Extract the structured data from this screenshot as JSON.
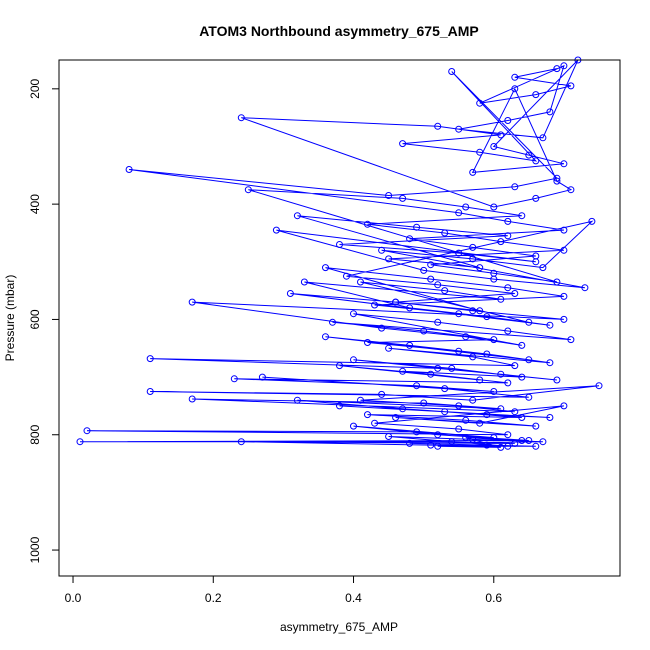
{
  "chart_data": {
    "type": "line",
    "title": "ATOM3 Northbound asymmetry_675_AMP",
    "xlabel": "asymmetry_675_AMP",
    "ylabel": "Pressure (mbar)",
    "xlim": [
      -0.02,
      0.78
    ],
    "ylim": [
      1045,
      150
    ],
    "y_reversed": true,
    "grid": false,
    "x_ticks": [
      0.0,
      0.2,
      0.4,
      0.6
    ],
    "x_tick_labels": [
      "0.0",
      "0.2",
      "0.4",
      "0.6"
    ],
    "y_ticks": [
      200,
      400,
      600,
      800,
      1000
    ],
    "y_tick_labels": [
      "200",
      "400",
      "600",
      "800",
      "1000"
    ],
    "series": [
      {
        "color": "#0000ff",
        "marker": "open-circle",
        "x": [
          0.69,
          0.63,
          0.71,
          0.66,
          0.58,
          0.7,
          0.68,
          0.62,
          0.55,
          0.67,
          0.72,
          0.6,
          0.65,
          0.7,
          0.57,
          0.63,
          0.69,
          0.71,
          0.66,
          0.6,
          0.24,
          0.52,
          0.61,
          0.47,
          0.58,
          0.66,
          0.54,
          0.69,
          0.63,
          0.45,
          0.08,
          0.55,
          0.62,
          0.7,
          0.48,
          0.57,
          0.66,
          0.51,
          0.6,
          0.69,
          0.25,
          0.47,
          0.56,
          0.64,
          0.42,
          0.53,
          0.61,
          0.7,
          0.45,
          0.58,
          0.32,
          0.49,
          0.62,
          0.38,
          0.55,
          0.66,
          0.29,
          0.5,
          0.6,
          0.73,
          0.44,
          0.57,
          0.67,
          0.74,
          0.39,
          0.52,
          0.63,
          0.46,
          0.58,
          0.36,
          0.51,
          0.62,
          0.7,
          0.43,
          0.55,
          0.65,
          0.41,
          0.53,
          0.61,
          0.33,
          0.48,
          0.59,
          0.68,
          0.31,
          0.46,
          0.57,
          0.7,
          0.17,
          0.44,
          0.56,
          0.64,
          0.4,
          0.52,
          0.62,
          0.71,
          0.37,
          0.5,
          0.6,
          0.42,
          0.55,
          0.65,
          0.36,
          0.48,
          0.59,
          0.68,
          0.45,
          0.57,
          0.63,
          0.11,
          0.52,
          0.61,
          0.69,
          0.4,
          0.54,
          0.64,
          0.47,
          0.58,
          0.38,
          0.51,
          0.62,
          0.23,
          0.49,
          0.6,
          0.27,
          0.53,
          0.65,
          0.11,
          0.44,
          0.57,
          0.75,
          0.41,
          0.55,
          0.63,
          0.17,
          0.5,
          0.61,
          0.32,
          0.47,
          0.59,
          0.68,
          0.38,
          0.53,
          0.64,
          0.42,
          0.56,
          0.66,
          0.46,
          0.58,
          0.7,
          0.43,
          0.55,
          0.62,
          0.02,
          0.49,
          0.6,
          0.4,
          0.52,
          0.65,
          0.01,
          0.54,
          0.63,
          0.24,
          0.51,
          0.62,
          0.45,
          0.57,
          0.67,
          0.48,
          0.59,
          0.66,
          0.52,
          0.61,
          0.56,
          0.64
        ],
        "y": [
          165,
          180,
          195,
          210,
          225,
          160,
          240,
          255,
          270,
          285,
          150,
          300,
          315,
          330,
          345,
          200,
          360,
          375,
          390,
          405,
          250,
          265,
          280,
          295,
          310,
          325,
          170,
          355,
          370,
          385,
          340,
          415,
          430,
          445,
          460,
          475,
          490,
          505,
          520,
          535,
          375,
          390,
          405,
          420,
          435,
          450,
          465,
          480,
          495,
          510,
          420,
          440,
          455,
          470,
          485,
          500,
          445,
          515,
          530,
          545,
          480,
          495,
          510,
          430,
          525,
          540,
          555,
          570,
          585,
          510,
          530,
          545,
          560,
          575,
          590,
          605,
          535,
          550,
          565,
          535,
          580,
          595,
          610,
          555,
          570,
          585,
          600,
          570,
          615,
          630,
          645,
          590,
          605,
          620,
          635,
          605,
          620,
          635,
          640,
          655,
          670,
          630,
          645,
          660,
          675,
          650,
          665,
          680,
          668,
          685,
          695,
          705,
          670,
          685,
          700,
          690,
          705,
          680,
          695,
          710,
          703,
          715,
          725,
          700,
          720,
          735,
          725,
          730,
          740,
          715,
          740,
          750,
          760,
          738,
          745,
          755,
          740,
          755,
          765,
          770,
          750,
          760,
          770,
          765,
          775,
          785,
          770,
          780,
          750,
          780,
          790,
          800,
          793,
          795,
          805,
          785,
          800,
          810,
          812,
          812,
          815,
          812,
          818,
          820,
          803,
          808,
          812,
          815,
          818,
          820,
          820,
          822,
          805,
          810
        ]
      }
    ]
  }
}
